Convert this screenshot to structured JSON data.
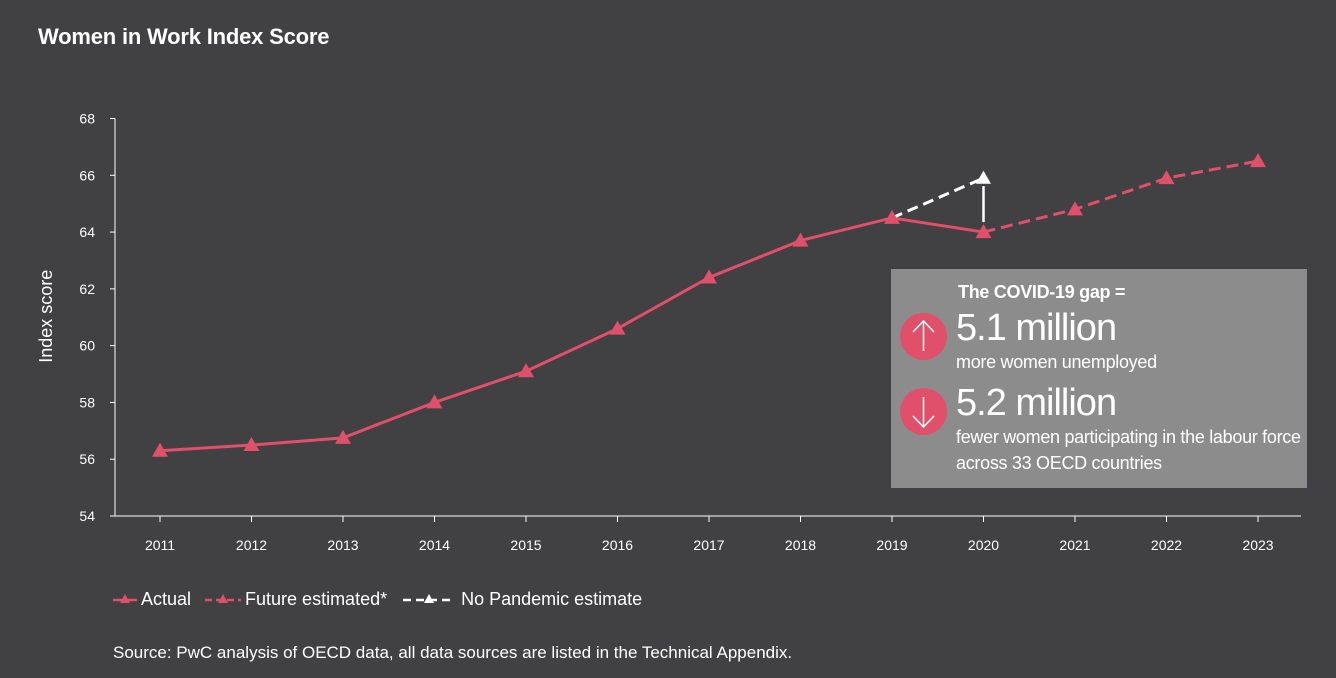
{
  "title": "Women in Work Index Score",
  "source": "Source: PwC analysis of OECD data, all data sources are listed in the Technical Appendix.",
  "colors": {
    "background": "#414042",
    "series": "#e0506a",
    "no_pandemic": "#ffffff",
    "callout_bg": "#8c8c8d"
  },
  "callout": {
    "heading": "The COVID-19 gap =",
    "stats": [
      {
        "icon": "arrow-up-icon",
        "value": "5.1 million",
        "description": "more women unemployed"
      },
      {
        "icon": "arrow-down-icon",
        "value": "5.2 million",
        "description": "fewer women participating in the labour force across 33 OECD countries"
      }
    ]
  },
  "chart_data": {
    "type": "line",
    "title": "Women in Work Index Score",
    "xlabel": "",
    "ylabel": "Index score",
    "ylim": [
      54,
      68
    ],
    "yticks": [
      54,
      56,
      58,
      60,
      62,
      64,
      66,
      68
    ],
    "categories": [
      "2011",
      "2012",
      "2013",
      "2014",
      "2015",
      "2016",
      "2017",
      "2018",
      "2019",
      "2020",
      "2021",
      "2022",
      "2023"
    ],
    "grid": false,
    "legend_position": "bottom-left",
    "series": [
      {
        "name": "Actual",
        "style": "solid",
        "marker": "triangle",
        "x": [
          "2011",
          "2012",
          "2013",
          "2014",
          "2015",
          "2016",
          "2017",
          "2018",
          "2019",
          "2020"
        ],
        "values": [
          56.3,
          56.5,
          56.75,
          58.0,
          59.1,
          60.6,
          62.4,
          63.7,
          64.5,
          64.0
        ]
      },
      {
        "name": "Future estimated*",
        "style": "dashed",
        "marker": "triangle",
        "x": [
          "2020",
          "2021",
          "2022",
          "2023"
        ],
        "values": [
          64.0,
          64.8,
          65.9,
          66.5
        ]
      },
      {
        "name": "No Pandemic estimate",
        "style": "dashed",
        "marker": "triangle",
        "x": [
          "2019",
          "2020"
        ],
        "values": [
          64.5,
          65.9
        ]
      }
    ]
  }
}
